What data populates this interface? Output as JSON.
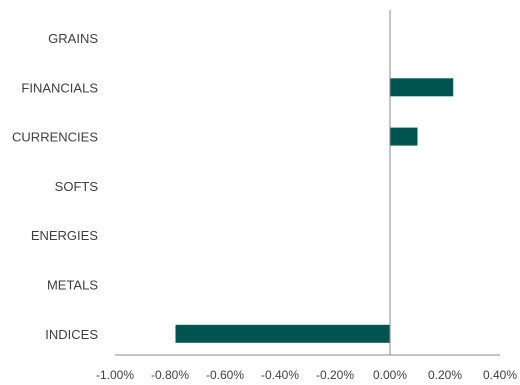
{
  "chart_data": {
    "type": "bar",
    "orientation": "horizontal",
    "categories": [
      "GRAINS",
      "FINANCIALS",
      "CURRENCIES",
      "SOFTS",
      "ENERGIES",
      "METALS",
      "INDICES"
    ],
    "values": [
      0.0,
      0.23,
      0.1,
      0.0,
      0.0,
      0.0,
      -0.78
    ],
    "unit": "%",
    "xlim": [
      -1.0,
      0.4
    ],
    "xticks": [
      "-1.00%",
      "-0.80%",
      "-0.60%",
      "-0.40%",
      "-0.20%",
      "0.00%",
      "0.20%",
      "0.40%"
    ],
    "title": "",
    "xlabel": "",
    "ylabel": "",
    "grid": false,
    "legend": "none",
    "colors": {
      "bar": "#005450",
      "axis": "#888888",
      "text": "#3f3f3f"
    }
  }
}
